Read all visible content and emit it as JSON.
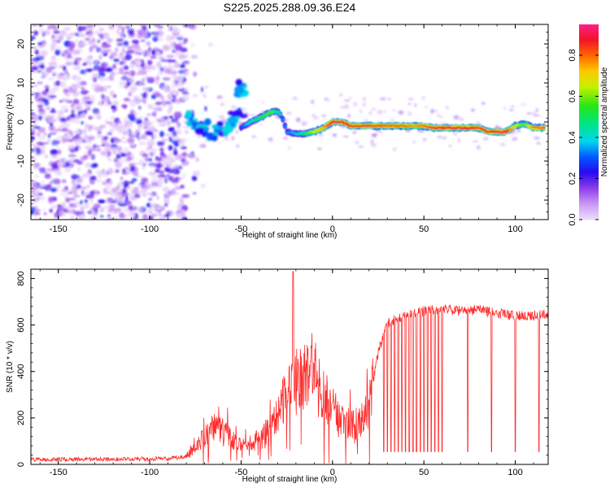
{
  "title": "S225.2025.288.09.36.E24",
  "chart_data": [
    {
      "type": "heatmap",
      "panel": "spectrogram",
      "xlabel": "Height of straight line (km)",
      "ylabel": "Frequency (Hz)",
      "xlim": [
        -165,
        118
      ],
      "ylim": [
        -25,
        25
      ],
      "xticks": [
        -150,
        -100,
        -50,
        0,
        50,
        100
      ],
      "yticks": [
        -20,
        -10,
        0,
        10,
        20
      ],
      "noise_region": {
        "x_range": [
          -165,
          -80
        ],
        "y_range": [
          -25,
          25
        ]
      },
      "transition_blobs": [
        {
          "x": -75,
          "y": 0.5
        },
        {
          "x": -70,
          "y": -1
        },
        {
          "x": -64,
          "y": -3
        },
        {
          "x": -58,
          "y": -2
        },
        {
          "x": -52,
          "y": 1
        },
        {
          "x": -48,
          "y": 9
        }
      ],
      "ridge": {
        "x": [
          -50,
          -45,
          -40,
          -35,
          -32,
          -29,
          -27,
          -25,
          -20,
          -15,
          -10,
          -5,
          0,
          5,
          10,
          20,
          30,
          40,
          45,
          50,
          55,
          60,
          70,
          80,
          85,
          90,
          95,
          100,
          105,
          110,
          116
        ],
        "y": [
          -1.5,
          0,
          1,
          2.2,
          2.8,
          2.5,
          0.5,
          -2.5,
          -3,
          -3,
          -2.5,
          -1.5,
          0,
          0,
          -1,
          -1,
          -1,
          -1,
          -1,
          -1,
          -1.5,
          -1.5,
          -1.5,
          -1.5,
          -2.5,
          -2.5,
          -2.5,
          -1,
          -0.5,
          -1.5,
          -1.5
        ],
        "amplitude": [
          0.3,
          0.45,
          0.55,
          0.6,
          0.6,
          0.45,
          0.35,
          0.35,
          0.4,
          0.55,
          0.7,
          0.8,
          0.95,
          0.95,
          0.9,
          0.9,
          0.85,
          0.85,
          0.8,
          0.85,
          0.9,
          0.95,
          0.95,
          0.9,
          0.9,
          0.95,
          0.95,
          0.7,
          0.6,
          0.85,
          0.85
        ]
      },
      "colorbar": {
        "label": "Normalized spectral amplitude",
        "range": [
          0.0,
          0.95
        ],
        "ticks": [
          "0.0",
          "0.2",
          "0.4",
          "0.6",
          "0.8"
        ]
      }
    },
    {
      "type": "line",
      "panel": "snr",
      "xlabel": "Height of straight line (km)",
      "ylabel": "SNR (10 * v/v)",
      "xlim": [
        -165,
        118
      ],
      "ylim": [
        0,
        840
      ],
      "xticks": [
        -150,
        -100,
        -50,
        0,
        50,
        100
      ],
      "yticks": [
        0,
        200,
        400,
        600,
        800
      ],
      "color": "#ff2a2a",
      "envelope": {
        "x": [
          -165,
          -90,
          -80,
          -75,
          -70,
          -65,
          -60,
          -55,
          -50,
          -45,
          -40,
          -35,
          -30,
          -25,
          -20,
          -15,
          -10,
          -5,
          0,
          5,
          10,
          15,
          20,
          25,
          30,
          40,
          50,
          60,
          70,
          80,
          90,
          100,
          110,
          118
        ],
        "y": [
          20,
          25,
          35,
          70,
          120,
          160,
          150,
          110,
          80,
          90,
          110,
          150,
          220,
          300,
          350,
          380,
          360,
          300,
          240,
          200,
          170,
          180,
          260,
          480,
          610,
          640,
          660,
          670,
          660,
          665,
          650,
          640,
          640,
          645
        ]
      },
      "spikes_up": [
        {
          "x": -21.5,
          "y": 830
        }
      ],
      "dropouts_x": [
        28,
        30,
        32,
        34,
        36,
        38,
        40,
        42,
        44,
        46,
        48,
        50,
        52,
        54,
        56,
        58,
        60,
        74,
        87,
        100,
        113
      ]
    }
  ]
}
